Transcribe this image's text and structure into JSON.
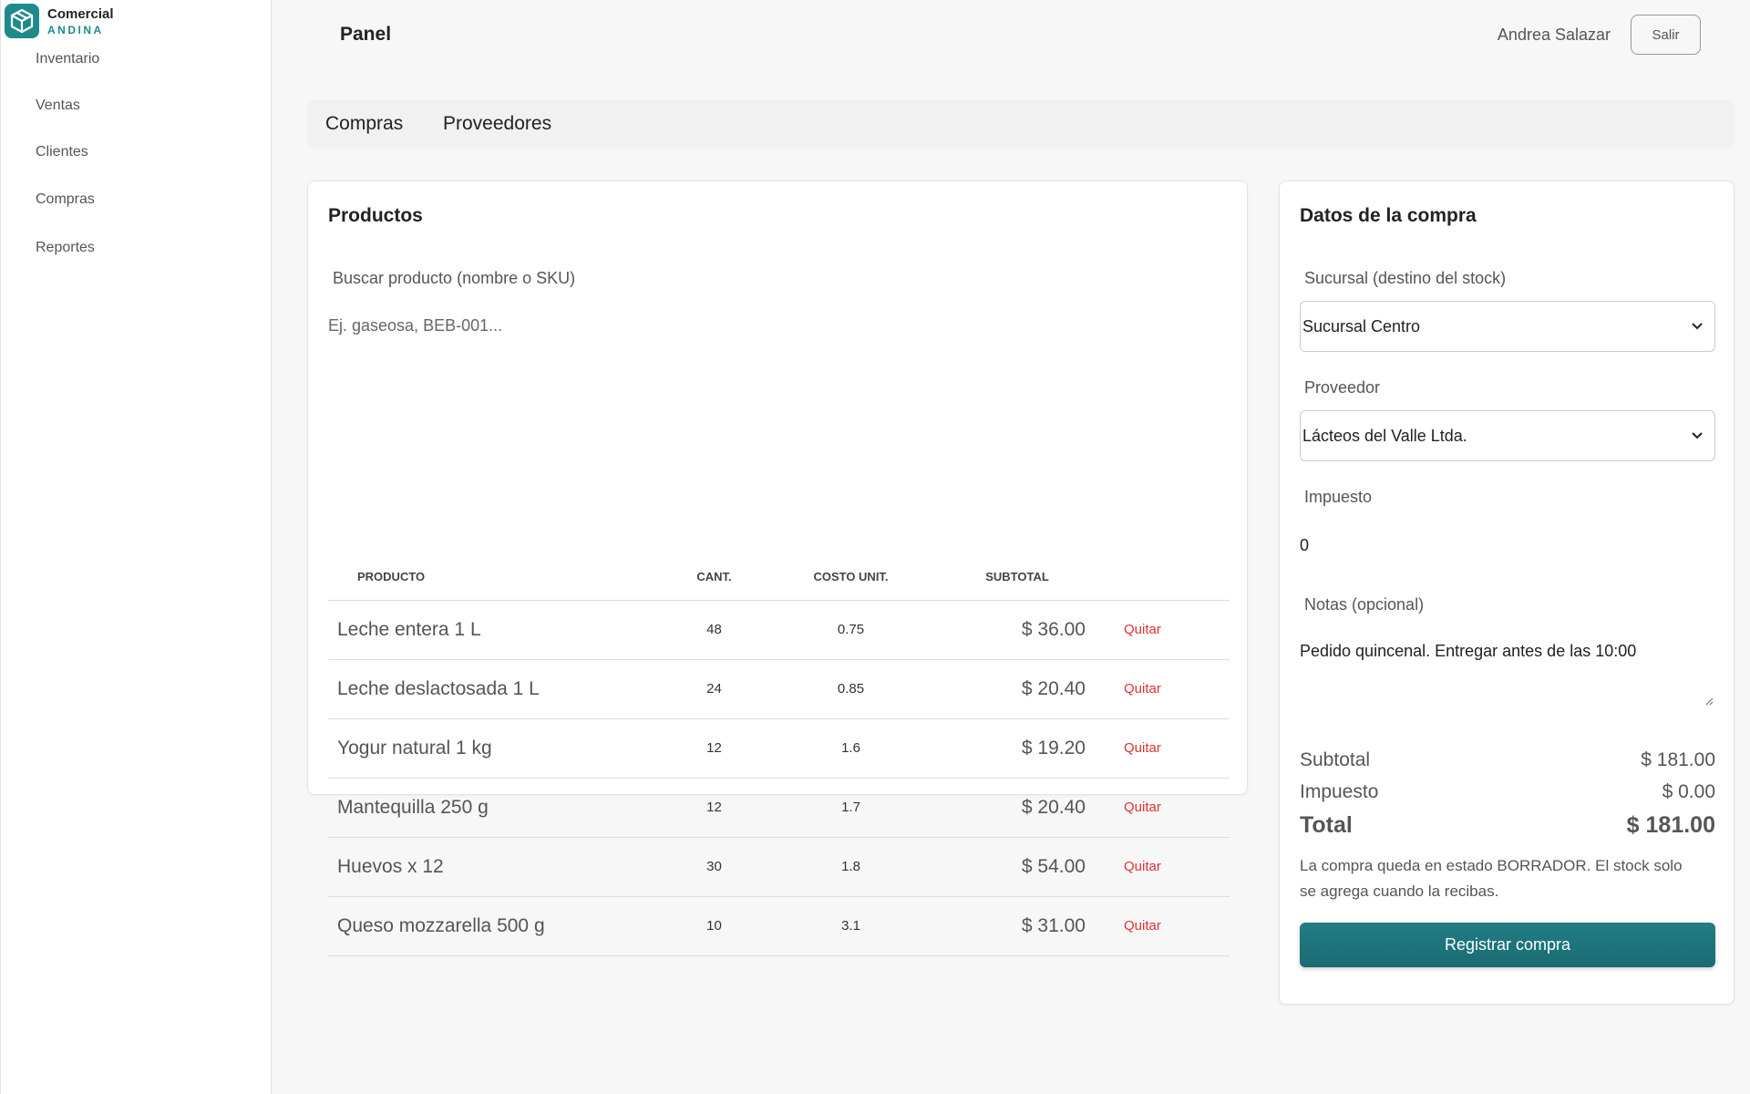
{
  "sidebar": {
    "brand": {
      "name": "Comercial",
      "sub": "ANDINA"
    },
    "nav": [
      "Inventario",
      "Ventas",
      "Clientes",
      "Compras",
      "Reportes"
    ]
  },
  "header": {
    "title": "Panel",
    "user": "Andrea Salazar",
    "logout": "Salir"
  },
  "tabs": [
    "Compras",
    "Proveedores"
  ],
  "products": {
    "title": "Productos",
    "search_label": "Buscar producto (nombre o SKU)",
    "search_placeholder": "Ej. gaseosa, BEB-001...",
    "table": {
      "columns": [
        "PRODUCTO",
        "CANT.",
        "COSTO UNIT.",
        "SUBTOTAL"
      ],
      "rows": [
        [
          "Leche entera 1 L",
          "48",
          "0.75",
          "$ 36.00",
          "Quitar"
        ],
        [
          "Leche deslactosada 1 L",
          "24",
          "0.85",
          "$ 20.40",
          "Quitar"
        ],
        [
          "Yogur natural 1 kg",
          "12",
          "1.6",
          "$ 19.20",
          "Quitar"
        ],
        [
          "Mantequilla 250 g",
          "12",
          "1.7",
          "$ 20.40",
          "Quitar"
        ],
        [
          "Huevos x 12",
          "30",
          "1.8",
          "$ 54.00",
          "Quitar"
        ],
        [
          "Queso mozzarella 500 g",
          "10",
          "3.1",
          "$ 31.00",
          "Quitar"
        ]
      ]
    }
  },
  "purchase": {
    "title": "Datos de la compra",
    "branch_label": "Sucursal (destino del stock)",
    "branch": "Sucursal Centro",
    "supplier_label": "Proveedor",
    "supplier": "Lácteos del Valle Ltda.",
    "tax_label": "Impuesto",
    "tax": "0",
    "notes_label": "Notas (opcional)",
    "notes": "Pedido quincenal. Entregar antes de las 10:00",
    "subtotal_label": "Subtotal",
    "subtotal": "$ 181.00",
    "tax_total_label": "Impuesto",
    "tax_total": "$ 0.00",
    "total_label": "Total",
    "total": "$ 181.00",
    "note": "La compra queda en estado BORRADOR. El stock solo se agrega cuando la recibas.",
    "submit": "Registrar compra"
  }
}
